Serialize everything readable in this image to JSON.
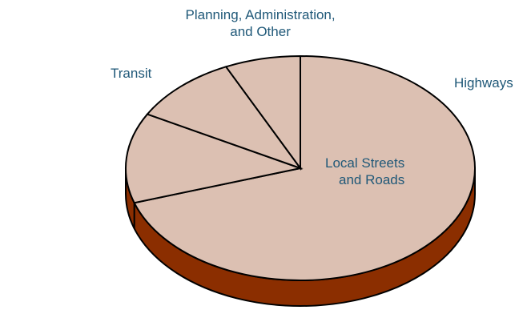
{
  "chart_data": {
    "type": "pie",
    "title": "",
    "style": "3d",
    "slices": [
      {
        "label_lines": [
          "Highways"
        ],
        "value": 70,
        "color": "#dcc0b2"
      },
      {
        "label_lines": [
          "Local Streets",
          "and Roads"
        ],
        "value": 13,
        "color": "#dcc0b2"
      },
      {
        "label_lines": [
          "Transit"
        ],
        "value": 10,
        "color": "#dcc0b2"
      },
      {
        "label_lines": [
          "Planning, Administration,",
          "and Other"
        ],
        "value": 7,
        "color": "#dcc0b2"
      }
    ],
    "colors": {
      "top": "#dcc0b2",
      "side": "#8b2e00",
      "outline": "#000000",
      "label": "#1f5878"
    }
  }
}
